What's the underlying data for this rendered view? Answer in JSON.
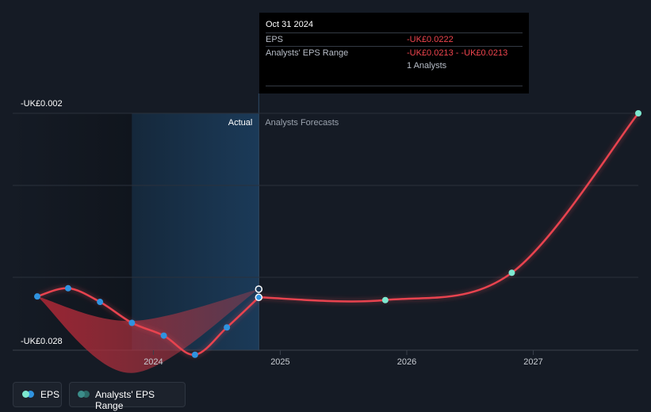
{
  "tooltip": {
    "date": "Oct 31 2024",
    "eps_label": "EPS",
    "eps_value": "-UK£0.0222",
    "range_label": "Analysts' EPS Range",
    "range_value": "-UK£0.0213 - -UK£0.0213",
    "analysts": "1 Analysts"
  },
  "legend": {
    "eps": "EPS",
    "range": "Analysts' EPS Range"
  },
  "colors": {
    "background": "#151b25",
    "eps_line": "#e8434f",
    "actual_dot": "#2f93e0",
    "forecast_dot": "#7de8d0",
    "range_fill": "#b02a36",
    "actual_band": "#1a3550"
  },
  "chart_data": {
    "type": "line",
    "y_labels": {
      "top": "-UK£0.002",
      "bottom": "-UK£0.028"
    },
    "ylim": [
      -0.028,
      -0.002
    ],
    "x_ticks": [
      "2024",
      "2025",
      "2026",
      "2027"
    ],
    "divider_date": "2024-10-31",
    "region_labels": {
      "actual": "Actual",
      "forecast": "Analysts Forecasts"
    },
    "series": [
      {
        "name": "EPS",
        "kind": "actual",
        "points": [
          {
            "x": "2023-01-31",
            "y": -0.0221
          },
          {
            "x": "2023-04-30",
            "y": -0.0212
          },
          {
            "x": "2023-07-31",
            "y": -0.0227
          },
          {
            "x": "2023-10-31",
            "y": -0.025
          },
          {
            "x": "2024-01-31",
            "y": -0.0264
          },
          {
            "x": "2024-04-30",
            "y": -0.0285
          },
          {
            "x": "2024-07-31",
            "y": -0.0255
          },
          {
            "x": "2024-10-31",
            "y": -0.0222
          }
        ]
      },
      {
        "name": "EPS",
        "kind": "forecast",
        "points": [
          {
            "x": "2024-10-31",
            "y": -0.0222
          },
          {
            "x": "2025-10-31",
            "y": -0.0225
          },
          {
            "x": "2026-10-31",
            "y": -0.0195
          },
          {
            "x": "2027-10-31",
            "y": -0.002
          }
        ]
      }
    ],
    "range_band": {
      "name": "Analysts' EPS Range",
      "upper": [
        {
          "x": "2023-01-31",
          "y": -0.0221
        },
        {
          "x": "2023-10-31",
          "y": -0.0248
        },
        {
          "x": "2024-10-31",
          "y": -0.0213
        }
      ],
      "lower": [
        {
          "x": "2023-01-31",
          "y": -0.0221
        },
        {
          "x": "2023-10-31",
          "y": -0.0305
        },
        {
          "x": "2024-10-31",
          "y": -0.0213
        }
      ]
    },
    "range_marker": {
      "x": "2024-10-31",
      "y": -0.0213
    }
  }
}
